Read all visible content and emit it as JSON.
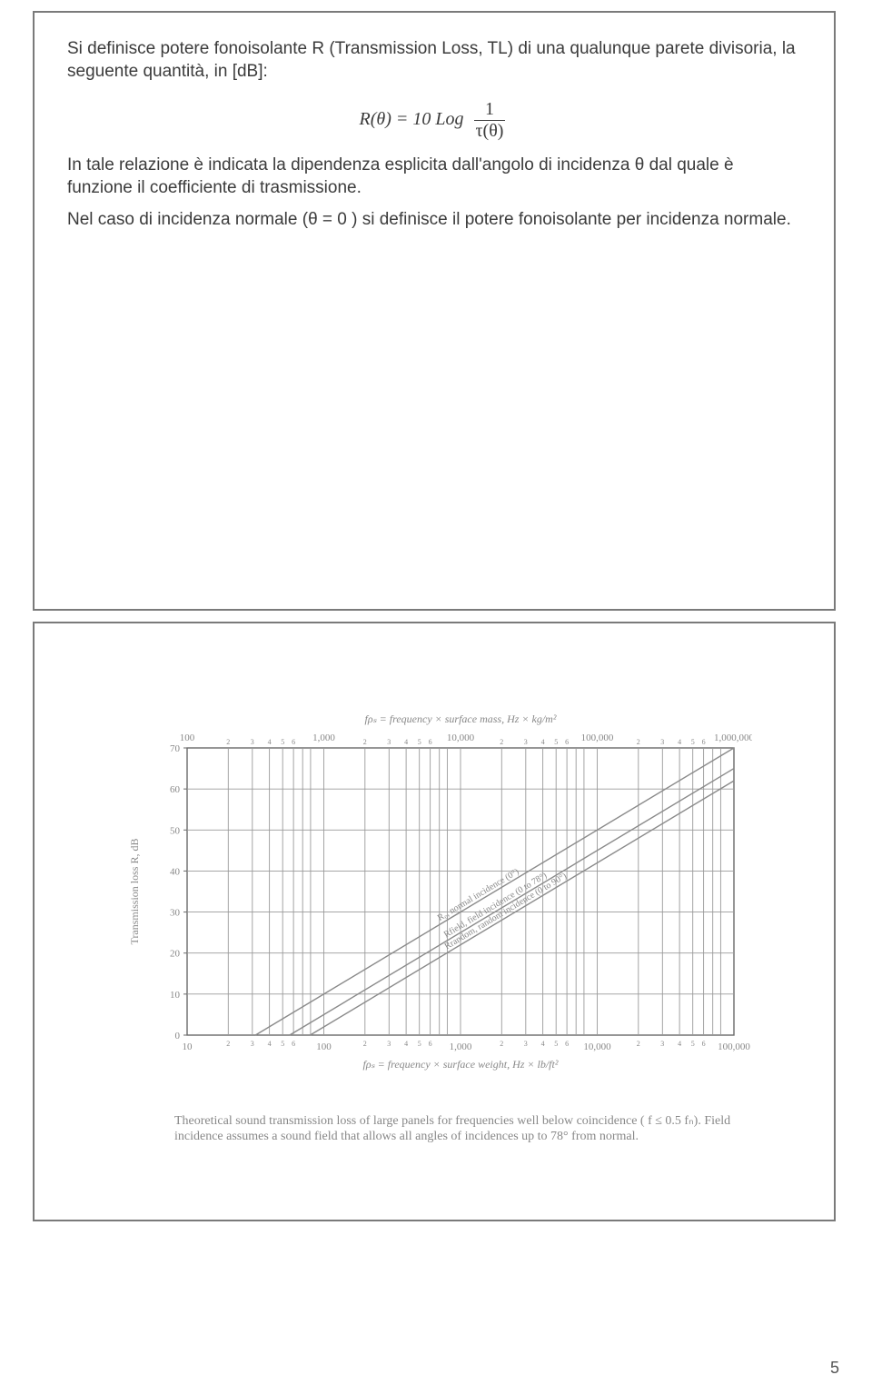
{
  "slide1": {
    "p1": "Si definisce potere fonoisolante  R (Transmission Loss, TL) di una qualunque parete divisoria, la seguente quantità, in [dB]:",
    "formula_lhs": "R(θ) = 10 Log",
    "formula_num": "1",
    "formula_den": "τ(θ)",
    "p2": "In tale relazione è indicata la dipendenza esplicita dall'angolo di incidenza θ dal quale è funzione il coefficiente di trasmissione.",
    "p3": "Nel caso di incidenza normale (θ = 0 ) si definisce il potere fonoisolante per incidenza normale."
  },
  "slide2": {
    "chart": {
      "type": "line",
      "title_top": "fρₛ = frequency × surface mass,  Hz × kg/m²",
      "title_bottom": "fρₛ = frequency × surface weight,  Hz × lb/ft²",
      "ylabel": "Transmission loss R, dB",
      "xlim_top": [
        100,
        1000000
      ],
      "xlim_bottom": [
        10,
        100000
      ],
      "ylim": [
        0,
        70
      ],
      "ytick_step": 10,
      "xticks_top": [
        100,
        1000,
        10000,
        100000,
        1000000
      ],
      "xtick_labels_top": [
        "100",
        "1,000",
        "10,000",
        "100,000",
        "1,000,000"
      ],
      "xticks_bottom": [
        10,
        100,
        1000,
        10000,
        100000
      ],
      "xtick_labels_bottom": [
        "10",
        "100",
        "1,000",
        "10,000",
        "100,000"
      ],
      "minor_ticks_log": [
        2,
        3,
        4,
        5,
        6,
        7,
        8
      ],
      "lines": [
        {
          "label": "R₀, normal incidence (0°)",
          "offset_db": 0
        },
        {
          "label": "Rfield, field incidence (0 to 78°)",
          "offset_db": -5
        },
        {
          "label": "Rrandom, random incidence (0 to 90°)",
          "offset_db": -8
        }
      ],
      "line_color": "#8a8a8a",
      "line_width": 1.4,
      "grid_color": "#9a9a9a",
      "grid_width": 0.9,
      "axis_color": "#6a6a6a",
      "text_color": "#888888",
      "font_size_ticks": 11,
      "font_size_labels": 12,
      "background": "#ffffff"
    },
    "caption": "Theoretical sound transmission loss of large panels for frequencies well below coincidence ( f ≤ 0.5 fₙ). Field incidence assumes a sound field that allows all angles of incidences up to 78° from normal."
  },
  "pagenum": "5",
  "border_color": "#7a7a7a",
  "text_color": "#3b3b3b"
}
